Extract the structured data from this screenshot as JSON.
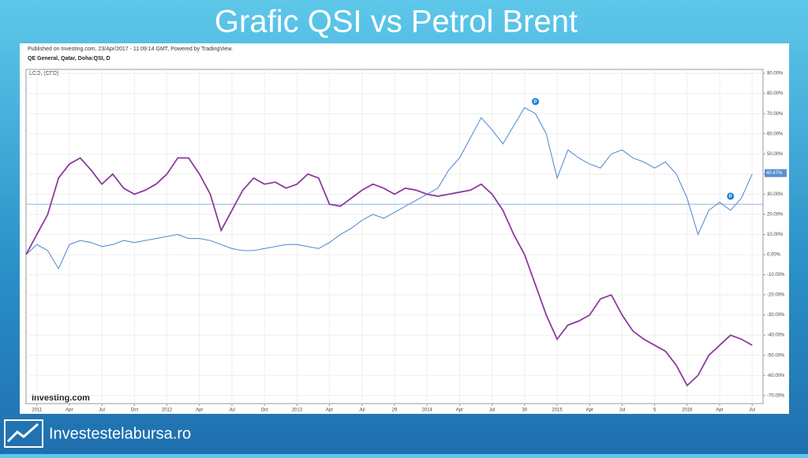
{
  "slide_title": "Grafic QSI vs Petrol Brent",
  "footer": "Investestelabursa.ro",
  "chart_data": {
    "type": "line",
    "published": "Published on Investing.com, 23/Apr/2017 - 11:09:14 GMT, Powered by TradingView.",
    "logo": "Investing.com",
    "x": [
      -1,
      0,
      1,
      2,
      3,
      4,
      5,
      6,
      7,
      8,
      9,
      10,
      11,
      12,
      13,
      14,
      15,
      16,
      17,
      18,
      19,
      20,
      21,
      22,
      23,
      24,
      25,
      26,
      27,
      28,
      29,
      30,
      31,
      32,
      33,
      34,
      35,
      36,
      37,
      38,
      39,
      40,
      41,
      42,
      43,
      44,
      45,
      46,
      47,
      48,
      49,
      50,
      51,
      52,
      53,
      54,
      55,
      56,
      57,
      58,
      59,
      60,
      61,
      62,
      63,
      64,
      65,
      66
    ],
    "series": [
      {
        "name": "QE General, Qatar, Doha:QSI, D",
        "color": "#5b8fd0",
        "values": [
          0,
          5,
          2,
          -7,
          5,
          7,
          6,
          4,
          5,
          7,
          6,
          7,
          8,
          9,
          10,
          8,
          8,
          7,
          5,
          3,
          2,
          2,
          3,
          4,
          5,
          5,
          4,
          3,
          6,
          10,
          13,
          17,
          20,
          18,
          21,
          24,
          27,
          30,
          33,
          42,
          48,
          58,
          68,
          62,
          55,
          64,
          73,
          70,
          60,
          38,
          52,
          48,
          45,
          43,
          50,
          52,
          48,
          46,
          43,
          46,
          40,
          28,
          10,
          22,
          26,
          22,
          28,
          40
        ]
      },
      {
        "name": "LCO, (CFD)",
        "color": "#8e3a9e",
        "values": [
          0,
          10,
          20,
          38,
          45,
          48,
          42,
          35,
          40,
          33,
          30,
          32,
          35,
          40,
          48,
          48,
          40,
          30,
          12,
          22,
          32,
          38,
          35,
          36,
          33,
          35,
          40,
          38,
          25,
          24,
          28,
          32,
          35,
          33,
          30,
          33,
          32,
          30,
          29,
          30,
          31,
          32,
          35,
          30,
          22,
          10,
          0,
          -15,
          -30,
          -42,
          -35,
          -33,
          -30,
          -22,
          -20,
          -30,
          -38,
          -42,
          -45,
          -48,
          -55,
          -65,
          -60,
          -50,
          -45,
          -40,
          -42,
          -45
        ]
      }
    ],
    "xlim": [
      -1,
      67
    ],
    "xticks": [
      {
        "value": 0,
        "label": "2011"
      },
      {
        "value": 3,
        "label": "Apr"
      },
      {
        "value": 6,
        "label": "Jul"
      },
      {
        "value": 9,
        "label": "Oct"
      },
      {
        "value": 12,
        "label": "2012"
      },
      {
        "value": 15,
        "label": "Apr"
      },
      {
        "value": 18,
        "label": "Jul"
      },
      {
        "value": 21,
        "label": "Oct"
      },
      {
        "value": 24,
        "label": "2013"
      },
      {
        "value": 27,
        "label": "Apr"
      },
      {
        "value": 30,
        "label": "Jul"
      },
      {
        "value": 33,
        "label": "29"
      },
      {
        "value": 36,
        "label": "2014"
      },
      {
        "value": 39,
        "label": "Apr"
      },
      {
        "value": 42,
        "label": "Jul"
      },
      {
        "value": 45,
        "label": "30"
      },
      {
        "value": 48,
        "label": "2015"
      },
      {
        "value": 51,
        "label": "Apr"
      },
      {
        "value": 54,
        "label": "Jul"
      },
      {
        "value": 57,
        "label": "5"
      },
      {
        "value": 60,
        "label": "2016"
      },
      {
        "value": 63,
        "label": "Apr"
      },
      {
        "value": 66,
        "label": "Jul"
      }
    ],
    "ylim": [
      -74,
      92
    ],
    "yticks": [
      {
        "value": 90,
        "label": "90.00%"
      },
      {
        "value": 80,
        "label": "80.00%"
      },
      {
        "value": 70,
        "label": "70.00%"
      },
      {
        "value": 60,
        "label": "60.00%"
      },
      {
        "value": 50,
        "label": "50.00%"
      },
      {
        "value": 40,
        "label": "40.00%"
      },
      {
        "value": 30,
        "label": "30.00%"
      },
      {
        "value": 20,
        "label": "20.00%"
      },
      {
        "value": 10,
        "label": "10.00%"
      },
      {
        "value": 0,
        "label": "0.00%"
      },
      {
        "value": -10,
        "label": "-10.00%"
      },
      {
        "value": -20,
        "label": "-20.00%"
      },
      {
        "value": -30,
        "label": "-30.00%"
      },
      {
        "value": -40,
        "label": "-40.00%"
      },
      {
        "value": -50,
        "label": "-50.00%"
      },
      {
        "value": -60,
        "label": "-60.00%"
      },
      {
        "value": -70,
        "label": "-70.00%"
      }
    ],
    "grid": true,
    "reference_line": 25,
    "last_value": {
      "value": 40.47,
      "label": "40.47%"
    },
    "markers": [
      {
        "label": "P",
        "x": 46,
        "y": 76
      },
      {
        "label": "P",
        "x": 64,
        "y": 29
      }
    ]
  }
}
